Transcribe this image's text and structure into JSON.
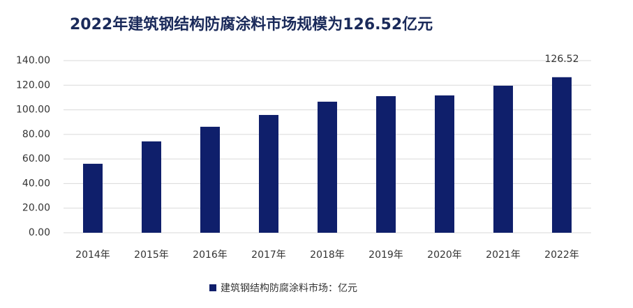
{
  "chart_data": {
    "type": "bar",
    "title": "2022年建筑钢结构防腐涂料市场规模为126.52亿元",
    "categories": [
      "2014年",
      "2015年",
      "2016年",
      "2017年",
      "2018年",
      "2019年",
      "2020年",
      "2021年",
      "2022年"
    ],
    "series": [
      {
        "name": "建筑钢结构防腐涂料市场：亿元",
        "color": "#0f1f6b",
        "values": [
          56.1,
          74.3,
          86.2,
          95.8,
          106.6,
          111.1,
          111.7,
          119.6,
          126.52
        ],
        "value_labels": [
          null,
          null,
          null,
          null,
          null,
          null,
          null,
          null,
          "126.52"
        ]
      }
    ],
    "ylim": [
      0,
      140
    ],
    "yticks": [
      {
        "value": 0,
        "label": "0.00"
      },
      {
        "value": 20,
        "label": "20.00"
      },
      {
        "value": 40,
        "label": "40.00"
      },
      {
        "value": 60,
        "label": "60.00"
      },
      {
        "value": 80,
        "label": "80.00"
      },
      {
        "value": 100,
        "label": "100.00"
      },
      {
        "value": 120,
        "label": "120.00"
      },
      {
        "value": 140,
        "label": "140.00"
      }
    ],
    "grid": true
  }
}
